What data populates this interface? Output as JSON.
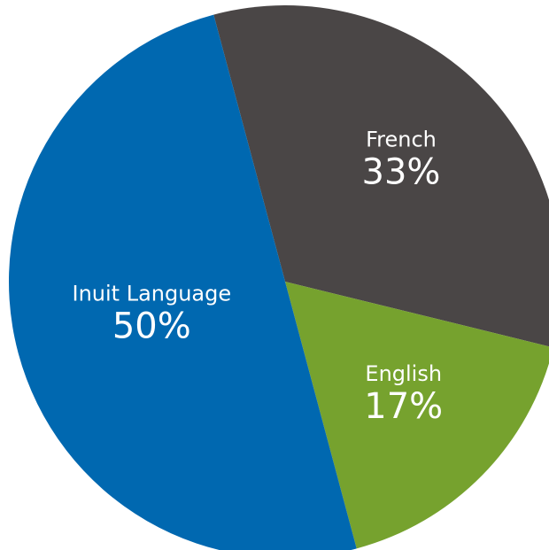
{
  "chart_data": {
    "type": "pie",
    "categories": [
      "French",
      "English",
      "Inuit Language"
    ],
    "values": [
      33,
      17,
      50
    ],
    "value_labels": [
      "33%",
      "17%",
      "50%"
    ],
    "colors": [
      "#4a4646",
      "#76a22e",
      "#0068b0"
    ]
  }
}
